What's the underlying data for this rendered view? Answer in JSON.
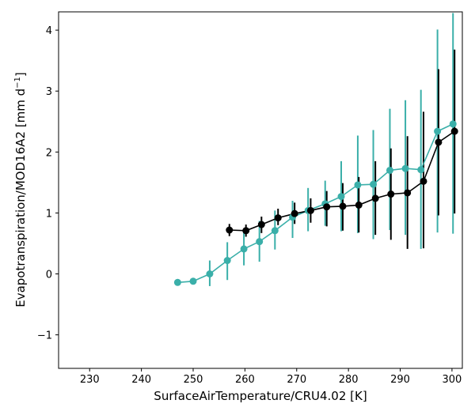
{
  "chart_data": {
    "type": "line",
    "xlabel": "SurfaceAirTemperature/CRU4.02 [K]",
    "ylabel_main": "Evapotranspiration/MOD16A2 [mm d",
    "ylabel_sup": "−1",
    "ylabel_end": "]",
    "xlim": [
      224,
      302
    ],
    "ylim": [
      -1.55,
      4.3
    ],
    "xticks": [
      230,
      240,
      250,
      260,
      270,
      280,
      290,
      300
    ],
    "yticks": [
      -1,
      0,
      1,
      2,
      3,
      4
    ],
    "ytick_labels": [
      "−1",
      "0",
      "1",
      "2",
      "3",
      "4"
    ],
    "grid": false,
    "series": [
      {
        "color": "#3aafa9",
        "x": [
          247,
          250,
          253.2,
          256.6,
          259.8,
          262.8,
          265.8,
          269.2,
          272.2,
          275.5,
          278.6,
          281.8,
          284.8,
          288,
          291,
          294,
          297.2,
          300.2
        ],
        "y": [
          -0.14,
          -0.12,
          0.0,
          0.22,
          0.41,
          0.53,
          0.71,
          0.93,
          1.04,
          1.15,
          1.27,
          1.46,
          1.47,
          1.7,
          1.73,
          1.71,
          2.34,
          2.46
        ],
        "err_low": [
          -0.14,
          -0.12,
          -0.2,
          -0.1,
          0.14,
          0.2,
          0.4,
          0.59,
          0.7,
          0.79,
          0.7,
          0.67,
          0.57,
          0.72,
          0.64,
          0.41,
          0.68,
          0.66
        ],
        "err_high": [
          -0.14,
          -0.12,
          0.22,
          0.52,
          0.7,
          0.87,
          1.04,
          1.2,
          1.41,
          1.53,
          1.85,
          2.27,
          2.36,
          2.71,
          2.85,
          3.02,
          4.01,
          4.28
        ]
      },
      {
        "color": "#000000",
        "x": [
          257,
          260.2,
          263.2,
          266.4,
          269.6,
          272.7,
          275.8,
          278.9,
          282,
          285.2,
          288.2,
          291.4,
          294.5,
          297.4,
          300.5
        ],
        "y": [
          0.72,
          0.71,
          0.81,
          0.92,
          0.99,
          1.04,
          1.1,
          1.11,
          1.13,
          1.24,
          1.31,
          1.33,
          1.52,
          2.16,
          2.34
        ],
        "err_low": [
          0.62,
          0.61,
          0.67,
          0.8,
          0.82,
          0.84,
          0.78,
          0.71,
          0.68,
          0.64,
          0.56,
          0.41,
          0.42,
          0.96,
          0.99
        ],
        "err_high": [
          0.82,
          0.81,
          0.94,
          1.07,
          1.17,
          1.24,
          1.36,
          1.49,
          1.59,
          1.85,
          2.06,
          2.26,
          2.66,
          3.36,
          3.68
        ]
      }
    ]
  }
}
